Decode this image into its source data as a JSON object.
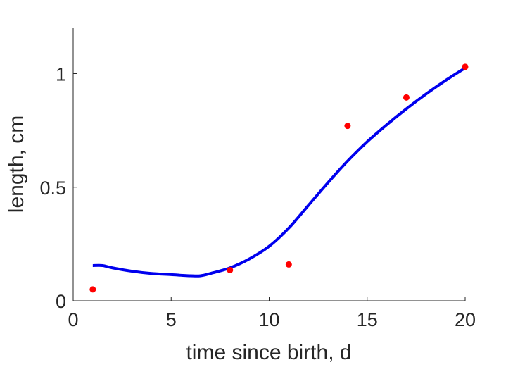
{
  "chart_data": {
    "type": "line",
    "title": "",
    "xlabel": "time since birth, d",
    "ylabel": "length, cm",
    "xlim": [
      0,
      20
    ],
    "ylim": [
      0,
      1.2
    ],
    "xticks": [
      0,
      5,
      10,
      15,
      20
    ],
    "xtick_labels": [
      "0",
      "5",
      "10",
      "15",
      "20"
    ],
    "yticks": [
      0,
      0.5,
      1
    ],
    "ytick_labels": [
      "0",
      "0.5",
      "1"
    ],
    "grid": false,
    "legend": "none",
    "series": [
      {
        "kind": "scatter",
        "color": "#ff0000",
        "x": [
          1,
          8,
          11,
          14,
          17,
          20
        ],
        "y": [
          0.05,
          0.135,
          0.16,
          0.77,
          0.895,
          1.03
        ]
      },
      {
        "kind": "line",
        "color": "#0000ee",
        "x": [
          1,
          1.5,
          2,
          3,
          4,
          5,
          6,
          6.5,
          7,
          8,
          9,
          10,
          11,
          12,
          13,
          14,
          15,
          16,
          17,
          18,
          19,
          20
        ],
        "y": [
          0.155,
          0.155,
          0.145,
          0.13,
          0.12,
          0.115,
          0.11,
          0.11,
          0.12,
          0.145,
          0.185,
          0.24,
          0.32,
          0.42,
          0.52,
          0.615,
          0.7,
          0.775,
          0.845,
          0.91,
          0.97,
          1.025
        ]
      }
    ]
  }
}
